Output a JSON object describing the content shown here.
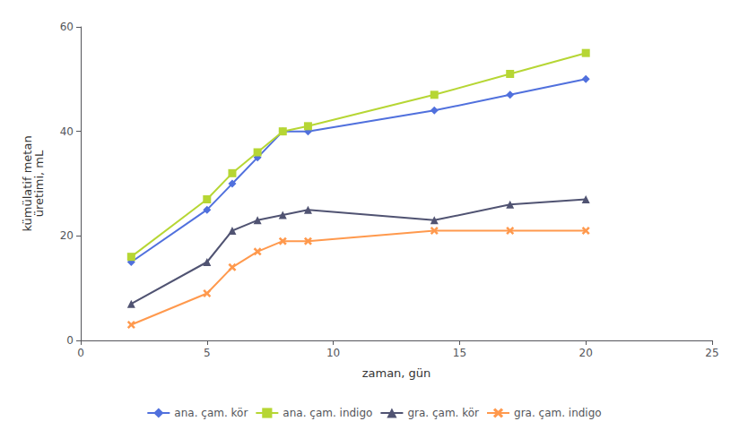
{
  "chart_data": {
    "type": "line",
    "xlabel": "zaman, gün",
    "ylabel": "kümülatif metan\nüretimi, mL",
    "xlim": [
      0,
      25
    ],
    "ylim": [
      0,
      60
    ],
    "xticks": [
      0,
      5,
      10,
      15,
      20,
      25
    ],
    "yticks": [
      0,
      20,
      40,
      60
    ],
    "grid": false,
    "legend": "bottom",
    "series": [
      {
        "name": "ana. çam. kör",
        "marker": "diamond",
        "x": [
          2,
          5,
          6,
          7,
          8,
          9,
          14,
          17,
          20
        ],
        "values": [
          15,
          25,
          30,
          35,
          40,
          40,
          44,
          47,
          50
        ]
      },
      {
        "name": "ana. çam. indigo",
        "marker": "square",
        "x": [
          2,
          5,
          6,
          7,
          8,
          9,
          14,
          17,
          20
        ],
        "values": [
          16,
          27,
          32,
          36,
          40,
          41,
          47,
          51,
          55
        ]
      },
      {
        "name": "gra. çam. kör",
        "marker": "triangle",
        "x": [
          2,
          5,
          6,
          7,
          8,
          9,
          14,
          17,
          20
        ],
        "values": [
          7,
          15,
          21,
          23,
          24,
          25,
          23,
          26,
          27
        ]
      },
      {
        "name": "gra. çam. indigo",
        "marker": "x",
        "x": [
          2,
          5,
          6,
          7,
          8,
          9,
          14,
          17,
          20
        ],
        "values": [
          3,
          9,
          14,
          17,
          19,
          19,
          21,
          21,
          21
        ]
      }
    ]
  }
}
